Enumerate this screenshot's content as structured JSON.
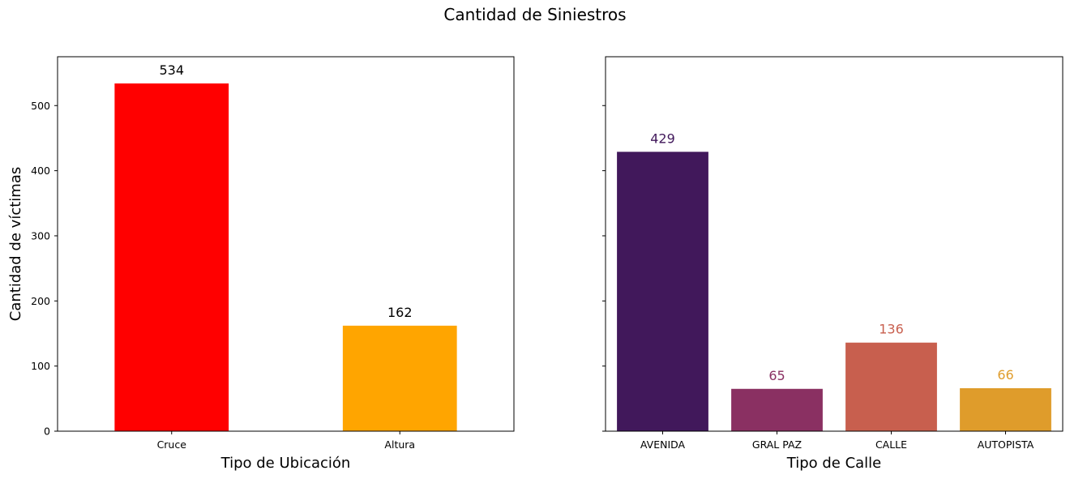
{
  "figure": {
    "title": "Cantidad de Siniestros"
  },
  "chart_data": [
    {
      "type": "bar",
      "title": "",
      "xlabel": "Tipo de Ubicación",
      "ylabel": "Cantidad de víctimas",
      "categories": [
        "Cruce",
        "Altura"
      ],
      "values": [
        534,
        162
      ],
      "colors": [
        "#ff0000",
        "#ffa500"
      ],
      "label_colors": [
        "#000000",
        "#000000"
      ],
      "ylim": [
        0,
        575
      ],
      "yticks": [
        0,
        100,
        200,
        300,
        400,
        500
      ],
      "grid": false,
      "legend": "none"
    },
    {
      "type": "bar",
      "title": "",
      "xlabel": "Tipo de Calle",
      "ylabel": "",
      "categories": [
        "AVENIDA",
        "GRAL PAZ",
        "CALLE",
        "AUTOPISTA"
      ],
      "values": [
        429,
        65,
        136,
        66
      ],
      "colors": [
        "#41185b",
        "#8a3062",
        "#c85f4e",
        "#df9c2b"
      ],
      "label_colors": [
        "#41185b",
        "#8a3062",
        "#c85f4e",
        "#df9c2b"
      ],
      "ylim": [
        0,
        575
      ],
      "yticks": [
        0,
        100,
        200,
        300,
        400,
        500
      ],
      "sharey": true,
      "grid": false,
      "legend": "none"
    }
  ]
}
